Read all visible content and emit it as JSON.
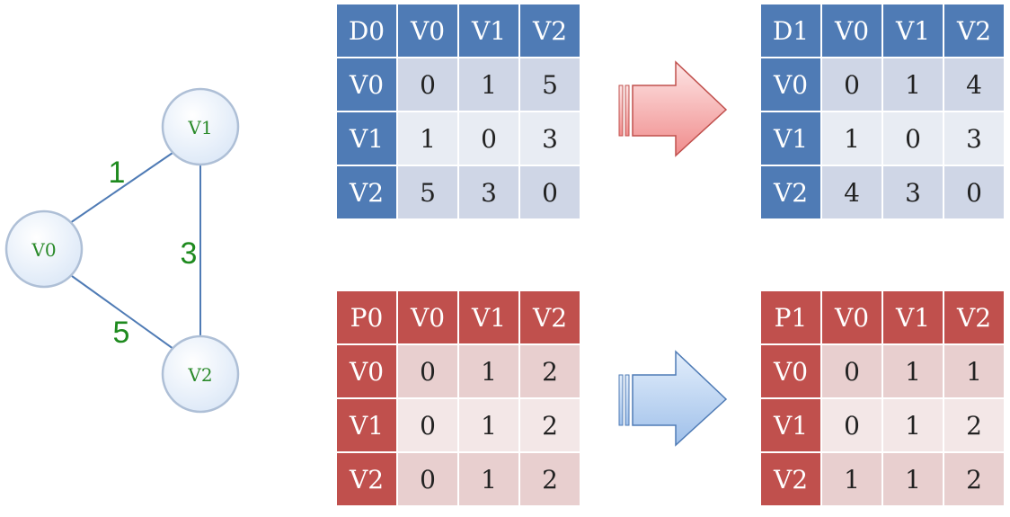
{
  "graph": {
    "nodes": [
      {
        "id": "v0",
        "label": "V0"
      },
      {
        "id": "v1",
        "label": "V1"
      },
      {
        "id": "v2",
        "label": "V2"
      }
    ],
    "edges": [
      {
        "from": "v0",
        "to": "v1",
        "weight": "1"
      },
      {
        "from": "v1",
        "to": "v2",
        "weight": "3"
      },
      {
        "from": "v0",
        "to": "v2",
        "weight": "5"
      }
    ],
    "node_fill": "#dce8f7",
    "node_stroke": "#aebfd6",
    "node_label_color": "#2a8a2a",
    "edge_color": "#4f7bb5",
    "weight_color": "#1e8a1e"
  },
  "matrices": {
    "d0": {
      "corner": "D0",
      "cols": [
        "V0",
        "V1",
        "V2"
      ],
      "rows": [
        {
          "label": "V0",
          "cells": [
            "0",
            "1",
            "5"
          ]
        },
        {
          "label": "V1",
          "cells": [
            "1",
            "0",
            "3"
          ]
        },
        {
          "label": "V2",
          "cells": [
            "5",
            "3",
            "0"
          ]
        }
      ]
    },
    "d1": {
      "corner": "D1",
      "cols": [
        "V0",
        "V1",
        "V2"
      ],
      "rows": [
        {
          "label": "V0",
          "cells": [
            "0",
            "1",
            "4"
          ]
        },
        {
          "label": "V1",
          "cells": [
            "1",
            "0",
            "3"
          ]
        },
        {
          "label": "V2",
          "cells": [
            "4",
            "3",
            "0"
          ]
        }
      ]
    },
    "p0": {
      "corner": "P0",
      "cols": [
        "V0",
        "V1",
        "V2"
      ],
      "rows": [
        {
          "label": "V0",
          "cells": [
            "0",
            "1",
            "2"
          ]
        },
        {
          "label": "V1",
          "cells": [
            "0",
            "1",
            "2"
          ]
        },
        {
          "label": "V2",
          "cells": [
            "0",
            "1",
            "2"
          ]
        }
      ]
    },
    "p1": {
      "corner": "P1",
      "cols": [
        "V0",
        "V1",
        "V2"
      ],
      "rows": [
        {
          "label": "V0",
          "cells": [
            "0",
            "1",
            "1"
          ]
        },
        {
          "label": "V1",
          "cells": [
            "0",
            "1",
            "2"
          ]
        },
        {
          "label": "V2",
          "cells": [
            "1",
            "1",
            "2"
          ]
        }
      ]
    }
  },
  "arrows": {
    "top": {
      "fill_light": "#fde5e5",
      "fill_dark": "#f08c8c",
      "stroke": "#c0504d"
    },
    "bottom": {
      "fill_light": "#e3eefb",
      "fill_dark": "#9fc0ea",
      "stroke": "#4f7bb5"
    }
  }
}
